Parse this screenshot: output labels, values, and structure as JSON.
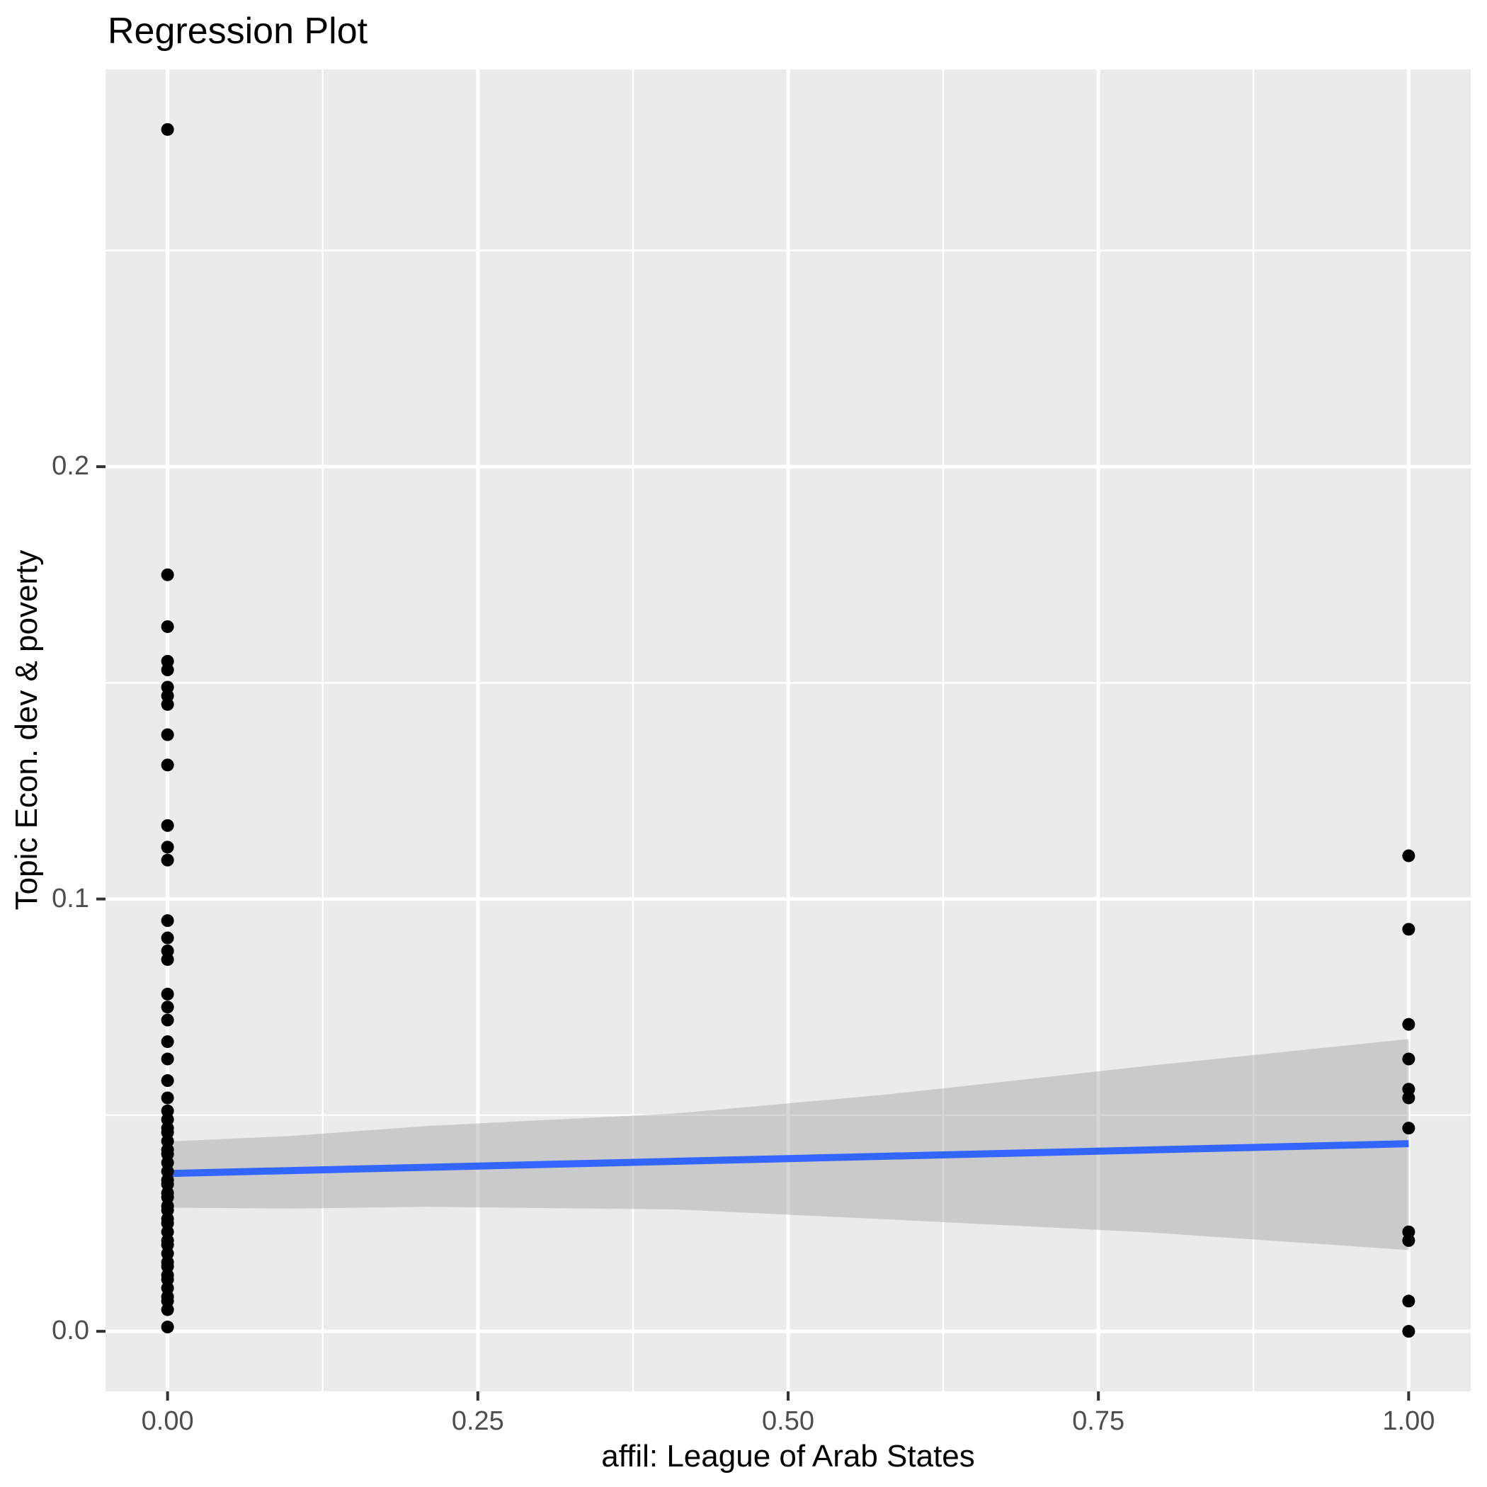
{
  "chart_data": {
    "type": "scatter",
    "title": "Regression Plot",
    "xlabel": "affil: League of Arab States",
    "ylabel": "Topic Econ. dev & poverty",
    "xlim": [
      -0.05,
      1.05
    ],
    "ylim": [
      -0.0139,
      0.2919
    ],
    "grid": true,
    "legend": "none",
    "x_tick_values": [
      0,
      0.25,
      0.5,
      0.75,
      1.0
    ],
    "x_tick_labels": [
      "0.00",
      "0.25",
      "0.50",
      "0.75",
      "1.00"
    ],
    "y_tick_values": [
      0,
      0.1,
      0.2
    ],
    "y_tick_labels": [
      "0.0",
      "0.1",
      "0.2"
    ],
    "x_minor_ticks": [
      0.125,
      0.375,
      0.625,
      0.875
    ],
    "y_minor_ticks": [
      0.05,
      0.15,
      0.25
    ],
    "series": [
      {
        "name": "affil = 0",
        "x": 0,
        "y_values": [
          0.278,
          0.175,
          0.163,
          0.155,
          0.153,
          0.149,
          0.147,
          0.145,
          0.138,
          0.131,
          0.117,
          0.112,
          0.109,
          0.095,
          0.091,
          0.088,
          0.086,
          0.078,
          0.075,
          0.072,
          0.067,
          0.063,
          0.058,
          0.054,
          0.051,
          0.049,
          0.047,
          0.046,
          0.044,
          0.042,
          0.041,
          0.039,
          0.037,
          0.035,
          0.034,
          0.032,
          0.031,
          0.029,
          0.028,
          0.026,
          0.025,
          0.023,
          0.021,
          0.02,
          0.018,
          0.016,
          0.015,
          0.013,
          0.012,
          0.01,
          0.008,
          0.007,
          0.005,
          0.001
        ]
      },
      {
        "name": "affil = 1",
        "x": 1,
        "y_values": [
          0.11,
          0.093,
          0.071,
          0.063,
          0.056,
          0.054,
          0.047,
          0.023,
          0.021,
          0.007,
          0.0
        ]
      }
    ],
    "regression_line": {
      "x": [
        0,
        1
      ],
      "y": [
        0.0365,
        0.0434
      ]
    },
    "ci_band": {
      "x": [
        0.0,
        0.1,
        0.21,
        0.41,
        0.58,
        0.79,
        1.0
      ],
      "upper": [
        0.0439,
        0.0452,
        0.0475,
        0.0504,
        0.0548,
        0.0614,
        0.0676
      ],
      "lower": [
        0.0286,
        0.0284,
        0.0288,
        0.0282,
        0.0259,
        0.0229,
        0.0188
      ]
    },
    "colors": {
      "panel_background": "#EBEBEB",
      "gridline": "#FFFFFF",
      "point": "#000000",
      "regression_line": "#3366FF",
      "ci_band": "#999999",
      "ci_band_opacity": 0.4,
      "tick_label": "#4D4D4D",
      "tick_mark": "#333333",
      "title": "#000000"
    }
  }
}
